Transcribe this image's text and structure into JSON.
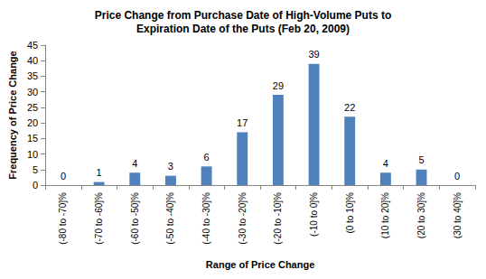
{
  "chart_data": {
    "type": "bar",
    "title": "Price Change from Purchase Date of High-Volume Puts to\nExpiration Date of the Puts (Feb 20, 2009)",
    "x_label": "Range of Price Change",
    "y_label": "Frequency of Price Change",
    "categories": [
      "(-80 to -70]%",
      "(-70 to -60]%",
      "(-60 to -50]%",
      "(-50 to -40]%",
      "(-40 to -30]%",
      "(-30 to -20]%",
      "(-20 to -10]%",
      "(-10 to 0]%",
      "(0 to 10]%",
      "(10 to 20]%",
      "(20 to 30]%",
      "(30 to 40]%"
    ],
    "values": [
      0,
      1,
      4,
      3,
      6,
      17,
      29,
      39,
      22,
      4,
      5,
      0
    ],
    "color": "#4f81bd",
    "ylim": [
      0,
      45
    ],
    "yticks": [
      0,
      5,
      10,
      15,
      20,
      25,
      30,
      35,
      40,
      45
    ],
    "grid": false,
    "data_labels": true
  }
}
